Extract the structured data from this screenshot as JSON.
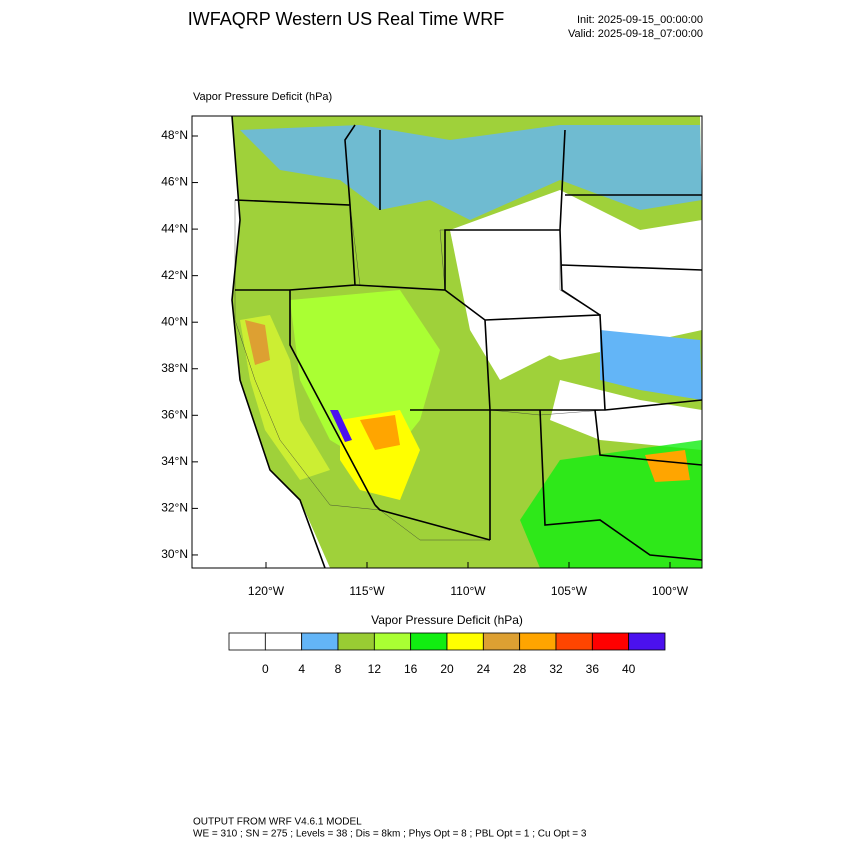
{
  "header": {
    "title": "IWFAQRP Western US Real Time WRF",
    "init": "Init: 2025-09-15_00:00:00",
    "valid": "Valid: 2025-09-18_07:00:00"
  },
  "map": {
    "title": "Vapor Pressure Deficit   (hPa)",
    "lat_labels": [
      "48°N",
      "46°N",
      "44°N",
      "42°N",
      "40°N",
      "38°N",
      "36°N",
      "34°N",
      "32°N",
      "30°N"
    ],
    "lon_labels": [
      "120°W",
      "115°W",
      "110°W",
      "105°W",
      "100°W"
    ]
  },
  "colorbar": {
    "title": "Vapor Pressure Deficit  (hPa)",
    "colors": [
      "#ffffff",
      "#ffffff",
      "#63b5f7",
      "#99cc33",
      "#aaff33",
      "#11ee11",
      "#ffff00",
      "#dda032",
      "#ffa500",
      "#ff4500",
      "#ff0000",
      "#4b11ee"
    ],
    "labels": [
      0,
      4,
      8,
      12,
      16,
      20,
      24,
      28,
      32,
      36,
      40
    ]
  },
  "footer": {
    "line1": "OUTPUT FROM WRF V4.6.1 MODEL",
    "line2": "WE = 310 ; SN = 275 ; Levels = 38 ; Dis = 8km ; Phys Opt = 8 ; PBL Opt = 1 ; Cu Opt = 3"
  }
}
